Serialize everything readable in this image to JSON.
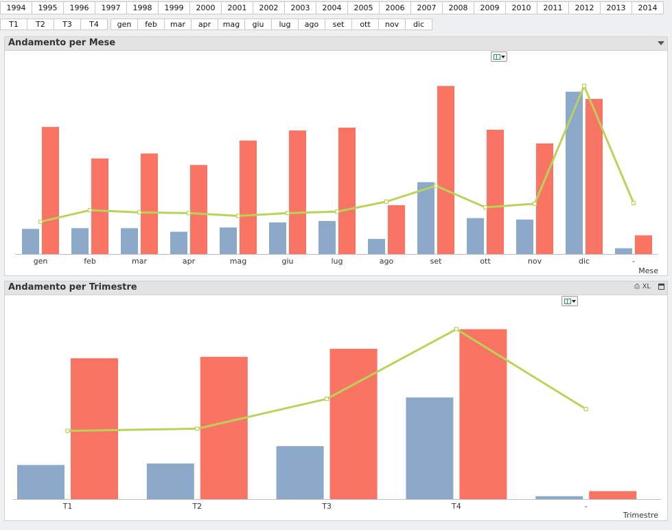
{
  "years": [
    "1994",
    "1995",
    "1996",
    "1997",
    "1998",
    "1999",
    "2000",
    "2001",
    "2002",
    "2003",
    "2004",
    "2005",
    "2006",
    "2007",
    "2008",
    "2009",
    "2010",
    "2011",
    "2012",
    "2013",
    "2014"
  ],
  "quarters": [
    "T1",
    "T2",
    "T3",
    "T4"
  ],
  "months": [
    "gen",
    "feb",
    "mar",
    "apr",
    "mag",
    "giu",
    "lug",
    "ago",
    "set",
    "ott",
    "nov",
    "dic"
  ],
  "panel_month": {
    "title": "Andamento per Mese"
  },
  "panel_quarter": {
    "title": "Andamento per Trimestre",
    "xl_label": "XL"
  },
  "colors": {
    "series_a": "#8da9c9",
    "series_b": "#fa7463",
    "line": "#b9d35a"
  },
  "icons": {
    "fast_change": "chart-type-switch-icon",
    "print": "print-icon",
    "maximize": "maximize-icon",
    "menu": "menu-caret-icon"
  },
  "chart_data": [
    {
      "type": "bar",
      "title": "Andamento per Mese",
      "xlabel": "Mese",
      "ylabel": "",
      "categories": [
        "gen",
        "feb",
        "mar",
        "apr",
        "mag",
        "giu",
        "lug",
        "ago",
        "set",
        "ott",
        "nov",
        "dic",
        "-"
      ],
      "series": [
        {
          "values": [
            35,
            36,
            36,
            31,
            37,
            44,
            46,
            21,
            100,
            50,
            48,
            226,
            8
          ]
        },
        {
          "values": [
            177,
            133,
            140,
            124,
            158,
            172,
            176,
            68,
            234,
            173,
            154,
            216,
            26
          ]
        }
      ],
      "line_values": [
        45,
        61,
        58,
        57,
        53,
        57,
        59,
        73,
        95,
        65,
        70,
        234,
        71
      ],
      "ylim": [
        0,
        260
      ],
      "grid": false
    },
    {
      "type": "bar",
      "title": "Andamento per Trimestre",
      "xlabel": "Trimestre",
      "ylabel": "",
      "categories": [
        "T1",
        "T2",
        "T3",
        "T4",
        "-"
      ],
      "series": [
        {
          "values": [
            47,
            49,
            73,
            140,
            4
          ]
        },
        {
          "values": [
            194,
            196,
            207,
            234,
            11
          ]
        }
      ],
      "line_values": [
        94,
        97,
        138,
        234,
        124
      ],
      "ylim": [
        0,
        260
      ],
      "grid": false
    }
  ]
}
